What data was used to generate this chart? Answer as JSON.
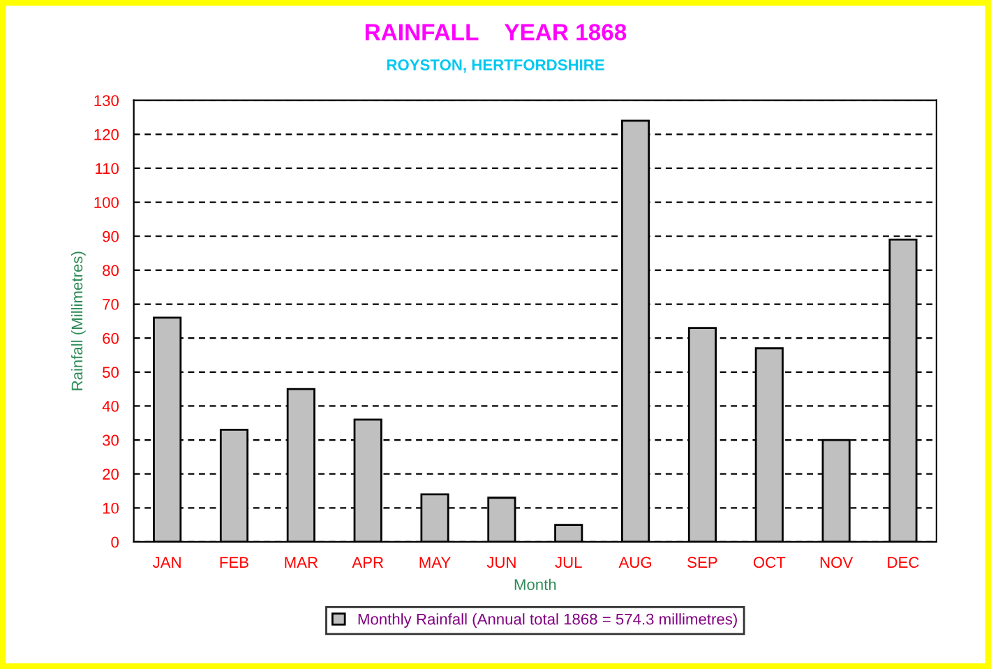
{
  "chart_data": {
    "type": "bar",
    "title": "RAINFALL    YEAR 1868",
    "subtitle": "ROYSTON, HERTFORDSHIRE",
    "xlabel": "Month",
    "ylabel": "Rainfall (Millimetres)",
    "categories": [
      "JAN",
      "FEB",
      "MAR",
      "APR",
      "MAY",
      "JUN",
      "JUL",
      "AUG",
      "SEP",
      "OCT",
      "NOV",
      "DEC"
    ],
    "series": [
      {
        "name": "Monthly Rainfall (Annual total 1868 = 574.3 millimetres)",
        "color": "#c0c0c0",
        "values": [
          66,
          33,
          45,
          36,
          14,
          13,
          5,
          124,
          63,
          57,
          30,
          89
        ]
      }
    ],
    "ylim": [
      0,
      130
    ],
    "yticks": [
      0,
      10,
      20,
      30,
      40,
      50,
      60,
      70,
      80,
      90,
      100,
      110,
      120,
      130
    ],
    "grid": "y",
    "legend": "bottom"
  }
}
